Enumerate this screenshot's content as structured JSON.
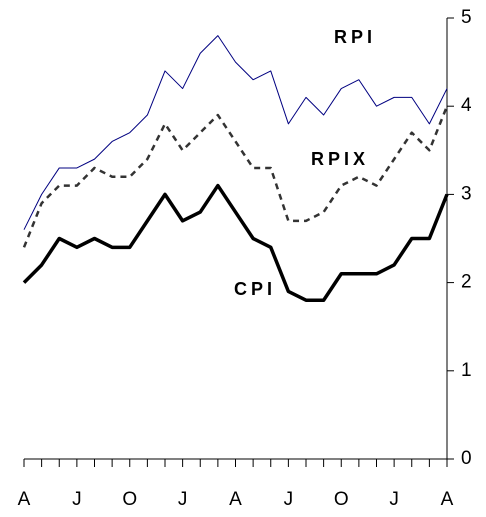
{
  "chart_data": {
    "type": "line",
    "categories": [
      "A",
      null,
      null,
      "J",
      null,
      null,
      "O",
      null,
      null,
      "J",
      null,
      null,
      "A",
      null,
      null,
      "J",
      null,
      null,
      "O",
      null,
      null,
      "J",
      null,
      null,
      "A"
    ],
    "series": [
      {
        "name": "RPI",
        "color": "#000080",
        "line_style": "solid",
        "values": [
          2.6,
          3.0,
          3.3,
          3.3,
          3.4,
          3.6,
          3.7,
          3.9,
          4.4,
          4.2,
          4.6,
          4.8,
          4.5,
          4.3,
          4.4,
          3.8,
          4.1,
          3.9,
          4.2,
          4.3,
          4.0,
          4.1,
          4.1,
          3.8,
          4.2
        ]
      },
      {
        "name": "RPIX",
        "color": "#333333",
        "line_style": "dashed",
        "values": [
          2.4,
          2.9,
          3.1,
          3.1,
          3.3,
          3.2,
          3.2,
          3.4,
          3.8,
          3.5,
          3.7,
          3.9,
          3.6,
          3.3,
          3.3,
          2.7,
          2.7,
          2.8,
          3.1,
          3.2,
          3.1,
          3.4,
          3.7,
          3.5,
          4.0
        ]
      },
      {
        "name": "CPI",
        "color": "#000000",
        "line_style": "thick",
        "values": [
          2.0,
          2.2,
          2.5,
          2.4,
          2.5,
          2.4,
          2.4,
          2.7,
          3.0,
          2.7,
          2.8,
          3.1,
          2.8,
          2.5,
          2.4,
          1.9,
          1.8,
          1.8,
          2.1,
          2.1,
          2.1,
          2.2,
          2.5,
          2.5,
          3.0
        ]
      }
    ],
    "ylim": [
      0,
      5
    ],
    "yticks": [
      0,
      1,
      2,
      3,
      4,
      5
    ],
    "grid": false
  }
}
